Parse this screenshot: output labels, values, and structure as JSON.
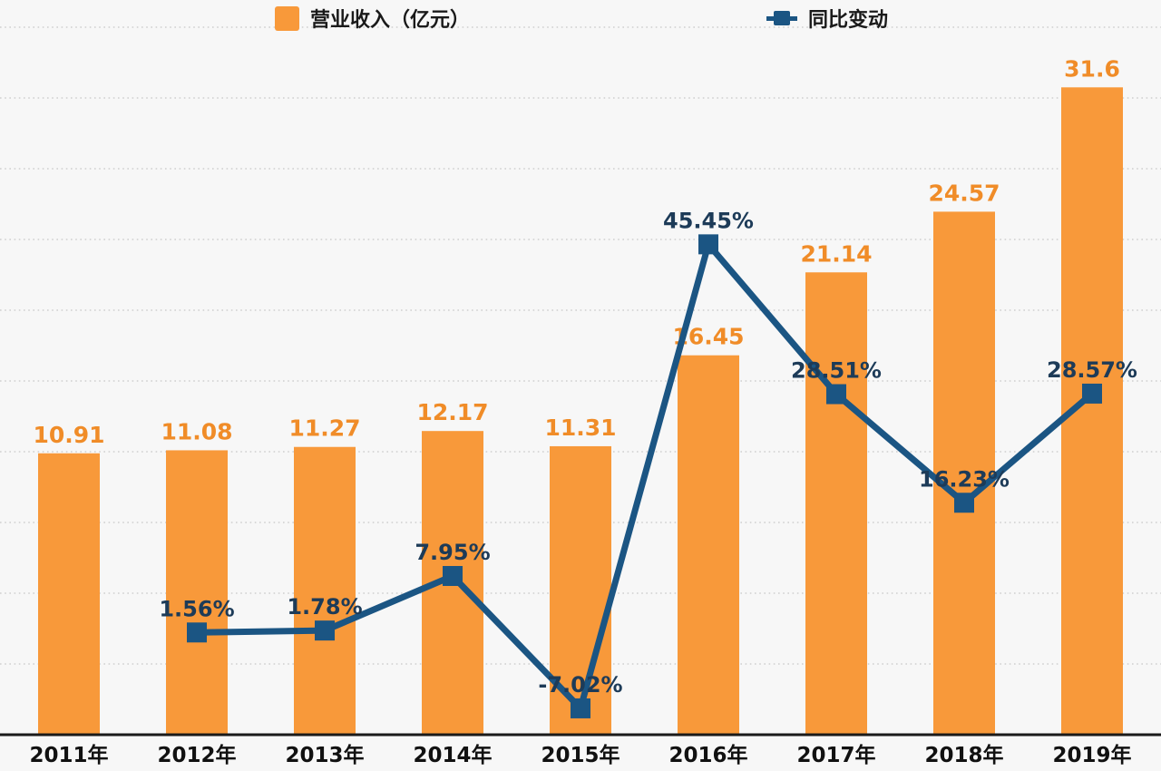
{
  "legend": {
    "bar_label": "营业收入（亿元）",
    "line_label": "同比变动"
  },
  "colors": {
    "background": "#f7f7f7",
    "bar_fill": "#f8993a",
    "bar_value_label": "#f08c28",
    "line_stroke": "#1b5583",
    "pct_label": "#1d3b58",
    "grid_line": "#cfcfcf",
    "axis_line": "#1a1a1a",
    "year_label": "#111111"
  },
  "chart_data": {
    "type": "bar",
    "combo": "bar+line",
    "title": "",
    "xlabel": "",
    "ylabel": "",
    "categories": [
      "2011年",
      "2012年",
      "2013年",
      "2014年",
      "2015年",
      "2016年",
      "2017年",
      "2018年",
      "2019年"
    ],
    "series": [
      {
        "name": "营业收入（亿元）",
        "type": "bar",
        "axis": "left",
        "values": [
          10.91,
          11.08,
          11.27,
          12.17,
          11.31,
          16.45,
          21.14,
          24.57,
          31.6
        ],
        "labels": [
          "10.91",
          "11.08",
          "11.27",
          "12.17",
          "11.31",
          "16.45",
          "21.14",
          "24.57",
          "31.6"
        ]
      },
      {
        "name": "同比变动",
        "type": "line",
        "axis": "right",
        "values": [
          null,
          1.56,
          1.78,
          7.95,
          -7.02,
          45.45,
          28.51,
          16.23,
          28.57
        ],
        "labels": [
          null,
          "1.56%",
          "1.78%",
          "7.95%",
          "-7.02%",
          "45.45%",
          "28.51%",
          "16.23%",
          "28.57%"
        ]
      }
    ],
    "left_axis_range": [
      -5,
      35
    ],
    "right_axis_range": [
      -10,
      70
    ],
    "grid": "dotted horizontal, 11 lines",
    "legend_position": "top"
  }
}
